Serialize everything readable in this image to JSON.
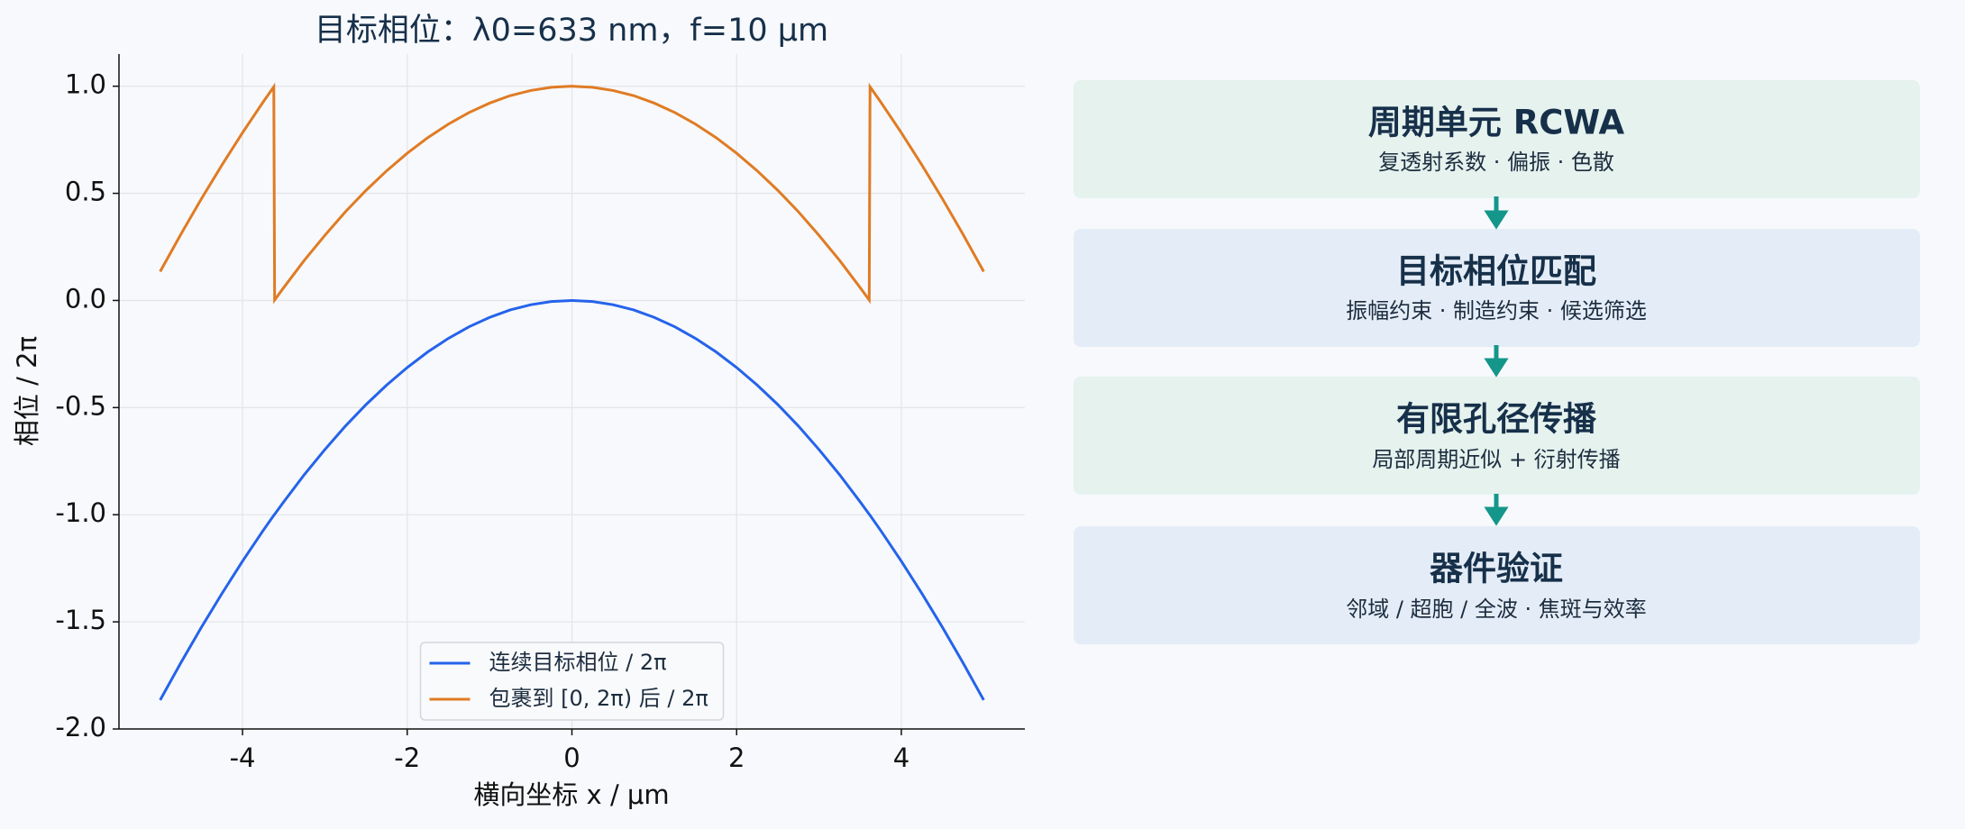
{
  "chart_data": {
    "type": "line",
    "title": "目标相位：λ0=633 nm，f=10 μm",
    "x_label": "横向坐标 x / μm",
    "y_label": "相位 / 2π",
    "x": [
      -5,
      -4.75,
      -4.5,
      -4.25,
      -4,
      -3.75,
      -3.62,
      -3.61,
      -3.5,
      -3.25,
      -3,
      -2.75,
      -2.5,
      -2.25,
      -2,
      -1.75,
      -1.5,
      -1.25,
      -1,
      -0.75,
      -0.5,
      -0.25,
      0,
      0.25,
      0.5,
      0.75,
      1,
      1.25,
      1.5,
      1.75,
      2,
      2.25,
      2.5,
      2.75,
      3,
      3.25,
      3.5,
      3.61,
      3.62,
      3.75,
      4,
      4.25,
      4.5,
      4.75,
      5
    ],
    "series": [
      {
        "name": "连续目标相位 / 2π",
        "color": "#2563eb",
        "values": [
          -1.865,
          -1.692,
          -1.526,
          -1.368,
          -1.217,
          -1.074,
          -1.003,
          -0.998,
          -0.94,
          -0.813,
          -0.696,
          -0.586,
          -0.486,
          -0.395,
          -0.313,
          -0.24,
          -0.177,
          -0.123,
          -0.079,
          -0.044,
          -0.02,
          -0.005,
          0,
          -0.005,
          -0.02,
          -0.044,
          -0.079,
          -0.123,
          -0.177,
          -0.24,
          -0.313,
          -0.395,
          -0.486,
          -0.586,
          -0.696,
          -0.813,
          -0.94,
          -0.998,
          -1.003,
          -1.074,
          -1.217,
          -1.368,
          -1.526,
          -1.692,
          -1.865
        ]
      },
      {
        "name": "包裹到 [0, 2π) 后 / 2π",
        "color": "#e07b24",
        "values": [
          0.135,
          0.308,
          0.474,
          0.632,
          0.783,
          0.926,
          0.997,
          0.002,
          0.06,
          0.187,
          0.304,
          0.414,
          0.514,
          0.605,
          0.687,
          0.76,
          0.823,
          0.877,
          0.921,
          0.956,
          0.98,
          0.995,
          1.0,
          0.995,
          0.98,
          0.956,
          0.921,
          0.877,
          0.823,
          0.76,
          0.687,
          0.605,
          0.514,
          0.414,
          0.304,
          0.187,
          0.06,
          0.002,
          0.997,
          0.926,
          0.783,
          0.632,
          0.474,
          0.308,
          0.135
        ]
      }
    ],
    "xlim": [
      -5.5,
      5.5
    ],
    "ylim": [
      -2.0,
      1.15
    ],
    "xticks": [
      -4,
      -2,
      0,
      2,
      4
    ],
    "yticks": [
      {
        "value": 1.0,
        "label": "1.0"
      },
      {
        "value": 0.5,
        "label": "0.5"
      },
      {
        "value": 0.0,
        "label": "0.0"
      },
      {
        "value": -0.5,
        "label": "-0.5"
      },
      {
        "value": -1.0,
        "label": "-1.0"
      },
      {
        "value": -1.5,
        "label": "-1.5"
      },
      {
        "value": -2.0,
        "label": "-2.0"
      }
    ],
    "grid": true,
    "legend": "lower center"
  },
  "flow": {
    "steps": [
      {
        "title": "周期单元 RCWA",
        "subtitle": "复透射系数 · 偏振 · 色散"
      },
      {
        "title": "目标相位匹配",
        "subtitle": "振幅约束 · 制造约束 · 候选筛选"
      },
      {
        "title": "有限孔径传播",
        "subtitle": "局部周期近似 + 衍射传播"
      },
      {
        "title": "器件验证",
        "subtitle": "邻域 / 超胞 / 全波 · 焦斑与效率"
      }
    ]
  }
}
